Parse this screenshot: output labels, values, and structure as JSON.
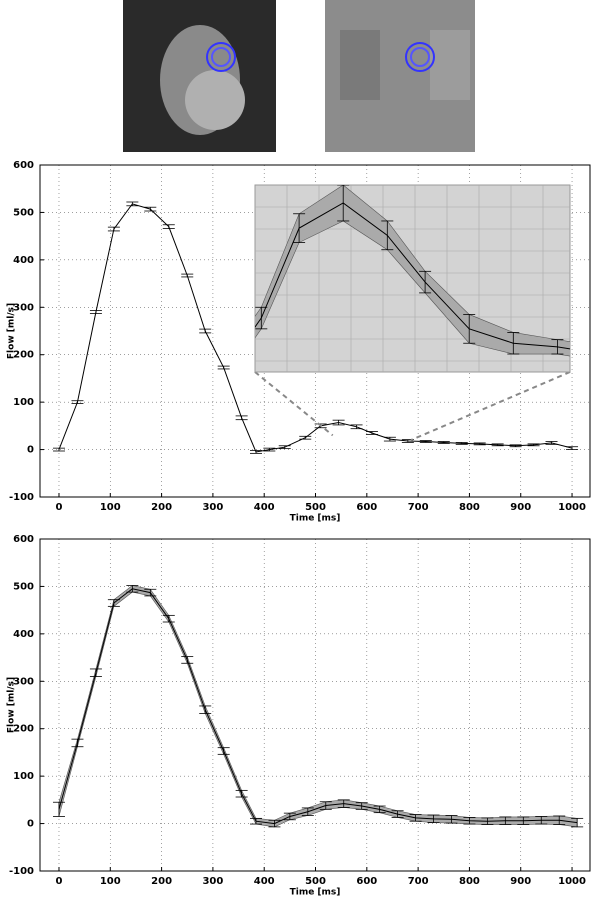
{
  "chart_data": [
    {
      "type": "line",
      "y_label": "Flow [ml/s]",
      "x_label": "Time [ms]",
      "x": [
        0,
        36,
        72,
        107,
        143,
        178,
        214,
        250,
        285,
        321,
        356,
        384,
        410,
        440,
        480,
        510,
        545,
        580,
        610,
        645,
        680,
        715,
        750,
        785,
        820,
        855,
        890,
        925,
        960,
        1000
      ],
      "series": [
        {
          "color": "#000000",
          "values": [
            0,
            100,
            290,
            465,
            518,
            507,
            470,
            367,
            250,
            173,
            67,
            -5,
            0,
            5,
            25,
            50,
            57,
            48,
            35,
            22,
            18,
            17,
            15,
            13,
            12,
            10,
            8,
            10,
            14,
            3
          ],
          "errors": [
            3,
            3,
            3,
            4,
            4,
            4,
            4,
            3,
            4,
            3,
            4,
            3,
            3,
            3,
            3,
            4,
            5,
            4,
            3,
            4,
            3,
            2,
            2,
            2,
            2,
            2,
            2,
            2,
            3,
            3
          ]
        }
      ],
      "xlim": [
        -37,
        1035
      ],
      "ylim": [
        -100,
        600
      ],
      "xticks": [
        0,
        100,
        200,
        300,
        400,
        500,
        600,
        700,
        800,
        900,
        1000
      ],
      "yticks": [
        -100,
        0,
        100,
        200,
        300,
        400,
        500,
        600
      ],
      "grid": true,
      "inset": {
        "xlim": [
          475,
          725
        ],
        "ylim": [
          10,
          62
        ]
      }
    },
    {
      "type": "line",
      "y_label": "Flow [ml/s]",
      "x_label": "Time [ms]",
      "x": [
        0,
        36,
        72,
        107,
        143,
        178,
        214,
        250,
        285,
        321,
        356,
        384,
        420,
        450,
        485,
        520,
        555,
        590,
        625,
        660,
        695,
        730,
        765,
        800,
        835,
        870,
        905,
        940,
        975,
        1010
      ],
      "series": [
        {
          "color": "#000000",
          "values": [
            30,
            170,
            318,
            465,
            495,
            487,
            432,
            345,
            240,
            153,
            63,
            5,
            0,
            15,
            25,
            38,
            42,
            37,
            30,
            20,
            12,
            10,
            9,
            6,
            5,
            6,
            6,
            7,
            7,
            2
          ],
          "errors": [
            15,
            8,
            8,
            7,
            7,
            7,
            7,
            7,
            8,
            7,
            7,
            6,
            7,
            7,
            8,
            8,
            8,
            7,
            7,
            7,
            7,
            8,
            8,
            7,
            7,
            8,
            8,
            8,
            9,
            9
          ]
        }
      ],
      "xlim": [
        -37,
        1035
      ],
      "ylim": [
        -100,
        600
      ],
      "xticks": [
        0,
        100,
        200,
        300,
        400,
        500,
        600,
        700,
        800,
        900,
        1000
      ],
      "yticks": [
        -100,
        0,
        100,
        200,
        300,
        400,
        500,
        600
      ],
      "grid": true
    }
  ]
}
